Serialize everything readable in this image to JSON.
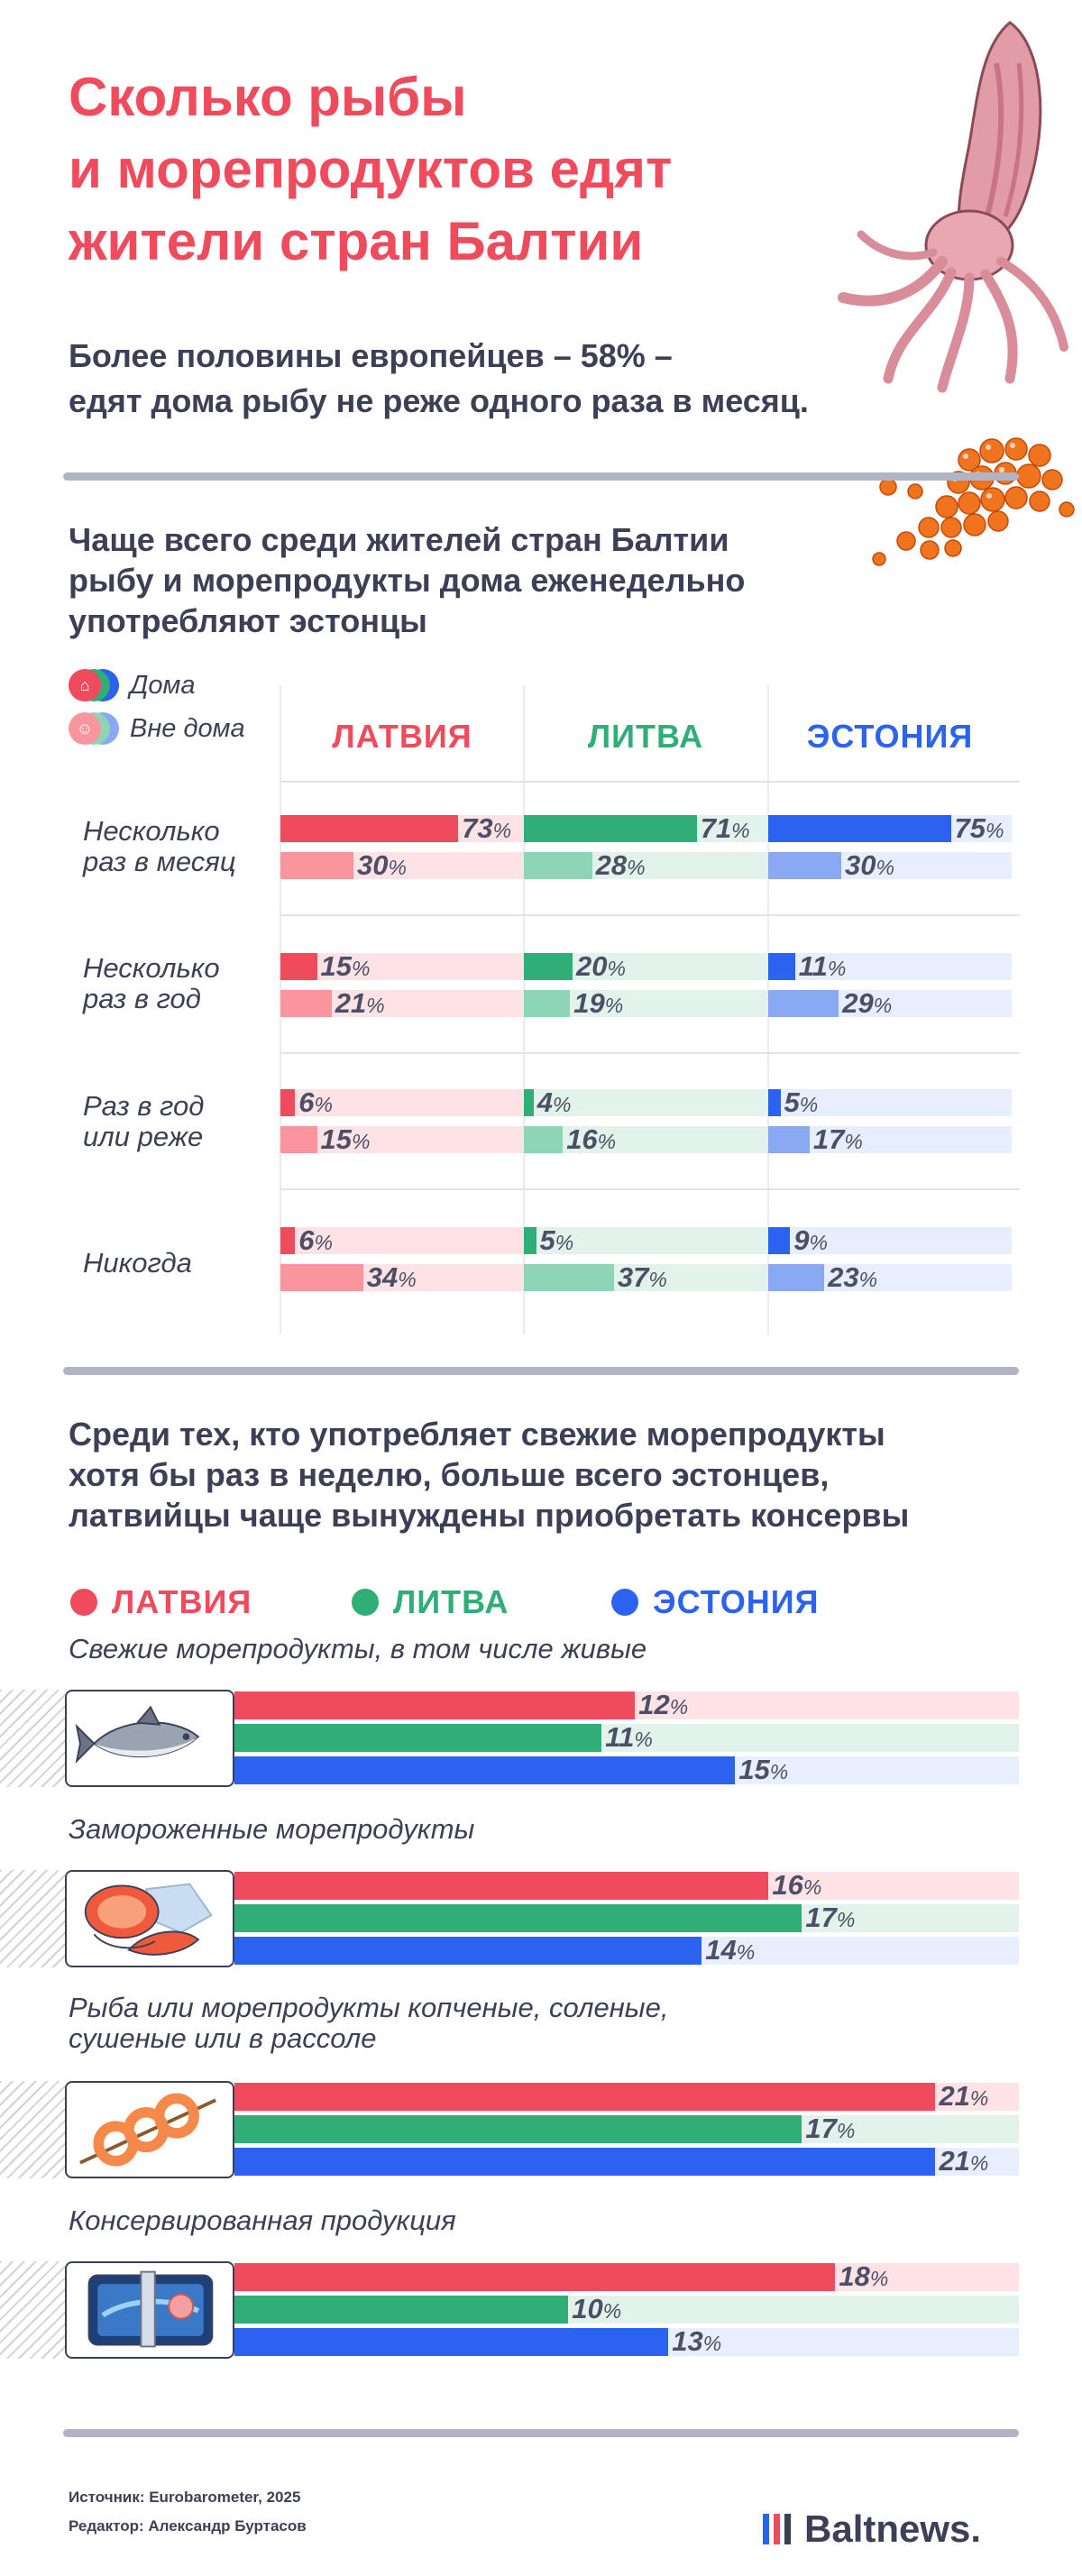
{
  "header": {
    "title_lines": [
      "Сколько рыбы",
      "и морепродуктов едят",
      "жители стран Балтии"
    ],
    "subtitle_lines": [
      "Более половины европейцев – 58% –",
      "едят дома рыбу не реже одного раза в месяц."
    ]
  },
  "colors": {
    "latvia": "#f04b5c",
    "lithuania": "#2fae77",
    "estonia": "#2b63f0",
    "latvia_light": "#f8959d",
    "lithuania_light": "#8ed5b7",
    "estonia_light": "#8aa9f5",
    "latvia_track": "#fde3e5",
    "lithuania_track": "#e1f3ea",
    "estonia_track": "#e7eefd"
  },
  "section1": {
    "heading_lines": [
      "Чаще всего среди жителей стран Балтии",
      "рыбу и морепродукты дома еженедельно",
      "употребляют эстонцы"
    ],
    "legend": {
      "home": "Дома",
      "away": "Вне дома",
      "home_icon": "house-icon",
      "away_icon": "outside-people-icon"
    }
  },
  "section2": {
    "heading_lines": [
      "Среди тех, кто употребляет свежие морепродукты",
      "хотя бы раз в неделю, больше всего эстонцев,",
      "латвийцы чаще вынуждены приобретать консервы"
    ]
  },
  "chart_data": [
    {
      "type": "bar",
      "orientation": "horizontal",
      "unit": "%",
      "countries": [
        "ЛАТВИЯ",
        "ЛИТВА",
        "ЭСТОНИЯ"
      ],
      "categories": [
        {
          "label_lines": [
            "Несколько",
            "раз в месяц"
          ]
        },
        {
          "label_lines": [
            "Несколько",
            "раз в год"
          ]
        },
        {
          "label_lines": [
            "Раз в год",
            "или реже"
          ]
        },
        {
          "label_lines": [
            "Никогда"
          ]
        }
      ],
      "series": [
        {
          "name": "Дома",
          "values": {
            "ЛАТВИЯ": [
              73,
              15,
              6,
              6
            ],
            "ЛИТВА": [
              71,
              20,
              4,
              5
            ],
            "ЭСТОНИЯ": [
              75,
              11,
              5,
              9
            ]
          }
        },
        {
          "name": "Вне дома",
          "values": {
            "ЛАТВИЯ": [
              30,
              21,
              15,
              34
            ],
            "ЛИТВА": [
              28,
              19,
              16,
              37
            ],
            "ЭСТОНИЯ": [
              30,
              29,
              17,
              23
            ]
          }
        }
      ],
      "xlim": [
        0,
        100
      ]
    },
    {
      "type": "bar",
      "orientation": "horizontal",
      "unit": "%",
      "legend": [
        "ЛАТВИЯ",
        "ЛИТВА",
        "ЭСТОНИЯ"
      ],
      "categories": [
        {
          "label_lines": [
            "Свежие морепродукты, в том числе живые"
          ],
          "icon": "fish-icon"
        },
        {
          "label_lines": [
            "Замороженные морепродукты"
          ],
          "icon": "frozen-steak-icon"
        },
        {
          "label_lines": [
            "Рыба или морепродукты копченые, соленые,",
            "сушеные или в рассоле"
          ],
          "icon": "shrimp-skewer-icon"
        },
        {
          "label_lines": [
            "Консервированная продукция"
          ],
          "icon": "canned-fish-icon"
        }
      ],
      "series": [
        {
          "name": "ЛАТВИЯ",
          "values": [
            12,
            16,
            21,
            18
          ]
        },
        {
          "name": "ЛИТВА",
          "values": [
            11,
            17,
            17,
            10
          ]
        },
        {
          "name": "ЭСТОНИЯ",
          "values": [
            15,
            14,
            21,
            13
          ]
        }
      ],
      "xlim": [
        0,
        23.5
      ]
    }
  ],
  "footer": {
    "source": "Источник: Eurobarometer, 2025",
    "editor": "Редактор: Александр Буртасов",
    "logo": "Baltnews."
  }
}
